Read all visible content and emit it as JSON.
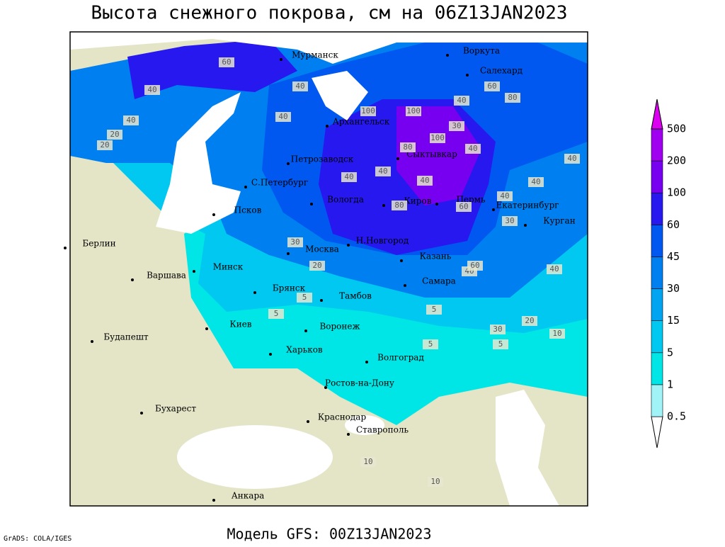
{
  "header": {
    "title": "Высота снежного покрова, см на 06Z13JAN2023"
  },
  "footer": {
    "model": "Модель GFS: 00Z13JAN2023",
    "credit": "GrADS: COLA/IGES"
  },
  "colorbar": {
    "levels": [
      0.5,
      1,
      5,
      15,
      30,
      45,
      60,
      100,
      200,
      500
    ],
    "colors": [
      "#ffffff",
      "#a0f4f8",
      "#00e6e6",
      "#00c8f0",
      "#00a4f0",
      "#0080f0",
      "#0058f0",
      "#2818f0",
      "#7800f0",
      "#a000f0",
      "#dc00f0"
    ]
  },
  "cities": [
    "Мурманск",
    "Воркута",
    "Салехард",
    "Архангельск",
    "Петрозаводск",
    "Сыктывкар",
    "С.Петербург",
    "Вологда",
    "Киров",
    "Пермь",
    "Екатеринбург",
    "Курган",
    "Псков",
    "Москва",
    "Н.Новгород",
    "Казань",
    "Берлин",
    "Варшава",
    "Минск",
    "Брянск",
    "Тамбов",
    "Самара",
    "Киев",
    "Воронеж",
    "Будапешт",
    "Харьков",
    "Волгоград",
    "Ростов-на-Дону",
    "Бухарест",
    "Краснодар",
    "Ставрополь",
    "Анкара"
  ],
  "contour_labels": [
    60,
    40,
    40,
    40,
    20,
    20,
    40,
    100,
    100,
    100,
    80,
    80,
    40,
    60,
    40,
    30,
    40,
    40,
    40,
    40,
    80,
    60,
    40,
    30,
    20,
    30,
    40,
    40,
    5,
    5,
    5,
    30,
    20,
    10,
    5,
    5,
    10,
    40,
    60,
    10
  ]
}
